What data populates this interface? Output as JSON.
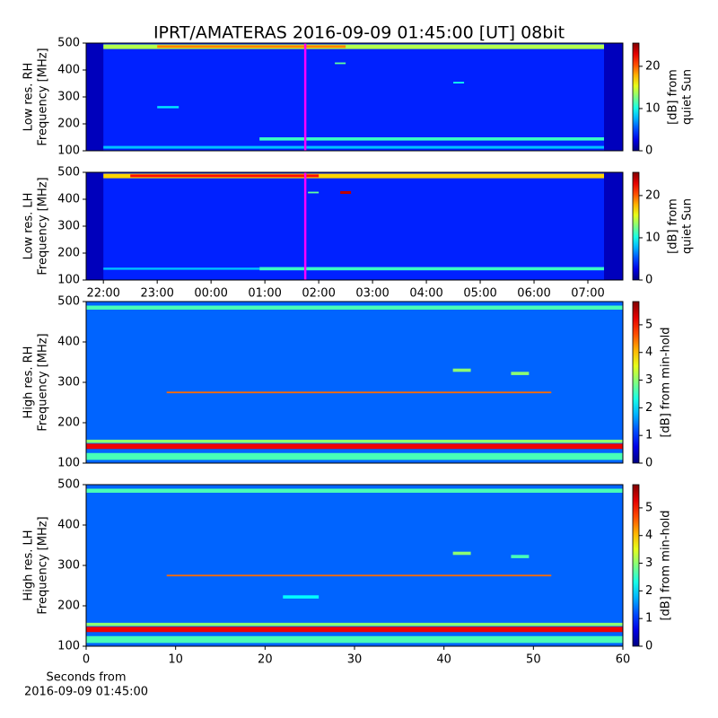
{
  "title": "IPRT/AMATERAS 2016-09-09 01:45:00 [UT]   08bit",
  "chart_data": [
    {
      "type": "heatmap",
      "ylabel": [
        "Low res. RH",
        "Frequency [MHz]"
      ],
      "xlim": [
        -2.32,
        7.65
      ],
      "ylim": [
        100,
        500
      ],
      "yticks": [
        100,
        200,
        300,
        400,
        500
      ],
      "colorbar": {
        "label": [
          "[dB] from",
          "quiet Sun"
        ],
        "lim": [
          0,
          25.5
        ],
        "ticks": [
          0,
          10,
          20
        ]
      },
      "marker": {
        "x": 1.75,
        "color": "#ff00ff"
      },
      "features": [
        {
          "x": [
            -2.32,
            7.65
          ],
          "y": [
            100,
            500
          ],
          "value": 4
        },
        {
          "x": [
            -2.32,
            -2.0
          ],
          "y": [
            100,
            500
          ],
          "value": 1.5
        },
        {
          "x": [
            7.3,
            7.65
          ],
          "y": [
            100,
            500
          ],
          "value": 1.5
        },
        {
          "x": [
            -2.0,
            7.3
          ],
          "y": [
            478,
            495
          ],
          "value": 14
        },
        {
          "x": [
            -1.0,
            2.5
          ],
          "y": [
            482,
            492
          ],
          "value": 19
        },
        {
          "x": [
            0.9,
            7.3
          ],
          "y": [
            138,
            150
          ],
          "value": 11
        },
        {
          "x": [
            -2.0,
            7.3
          ],
          "y": [
            108,
            118
          ],
          "value": 8
        },
        {
          "x": [
            -1.0,
            -0.6
          ],
          "y": [
            258,
            266
          ],
          "value": 9
        },
        {
          "x": [
            4.5,
            4.7
          ],
          "y": [
            350,
            356
          ],
          "value": 10
        },
        {
          "x": [
            2.3,
            2.5
          ],
          "y": [
            422,
            428
          ],
          "value": 12
        }
      ]
    },
    {
      "type": "heatmap",
      "ylabel": [
        "Low res. LH",
        "Frequency [MHz]"
      ],
      "xlim": [
        -2.32,
        7.65
      ],
      "ylim": [
        100,
        500
      ],
      "yticks": [
        100,
        200,
        300,
        400,
        500
      ],
      "xticks": [
        {
          "value": -2,
          "label": "22:00"
        },
        {
          "value": -1,
          "label": "23:00"
        },
        {
          "value": 0,
          "label": "00:00"
        },
        {
          "value": 1,
          "label": "01:00"
        },
        {
          "value": 2,
          "label": "02:00"
        },
        {
          "value": 3,
          "label": "03:00"
        },
        {
          "value": 4,
          "label": "04:00"
        },
        {
          "value": 5,
          "label": "05:00"
        },
        {
          "value": 6,
          "label": "06:00"
        },
        {
          "value": 7,
          "label": "07:00"
        }
      ],
      "colorbar": {
        "label": [
          "[dB] from",
          "quiet Sun"
        ],
        "lim": [
          0,
          25.5
        ],
        "ticks": [
          0,
          10,
          20
        ]
      },
      "marker": {
        "x": 1.75,
        "color": "#ff00ff"
      },
      "features": [
        {
          "x": [
            -2.32,
            7.65
          ],
          "y": [
            100,
            500
          ],
          "value": 4
        },
        {
          "x": [
            -2.32,
            -2.0
          ],
          "y": [
            100,
            500
          ],
          "value": 1.5
        },
        {
          "x": [
            7.3,
            7.65
          ],
          "y": [
            100,
            500
          ],
          "value": 1.5
        },
        {
          "x": [
            -2.0,
            7.3
          ],
          "y": [
            478,
            495
          ],
          "value": 17
        },
        {
          "x": [
            -1.5,
            2.0
          ],
          "y": [
            482,
            492
          ],
          "value": 22
        },
        {
          "x": [
            0.9,
            7.3
          ],
          "y": [
            136,
            148
          ],
          "value": 11
        },
        {
          "x": [
            -2.0,
            0.9
          ],
          "y": [
            138,
            146
          ],
          "value": 8
        },
        {
          "x": [
            1.8,
            2.0
          ],
          "y": [
            422,
            428
          ],
          "value": 12
        },
        {
          "x": [
            2.4,
            2.6
          ],
          "y": [
            420,
            430
          ],
          "value": 24
        }
      ]
    },
    {
      "type": "heatmap",
      "ylabel": [
        "High res. RH",
        "Frequency [MHz]"
      ],
      "xlim": [
        0,
        60
      ],
      "ylim": [
        100,
        500
      ],
      "yticks": [
        100,
        200,
        300,
        400,
        500
      ],
      "colorbar": {
        "label": [
          "[dB] from min-hold"
        ],
        "lim": [
          0,
          5.84
        ],
        "ticks": [
          0,
          1,
          2,
          3,
          4,
          5
        ]
      },
      "features": [
        {
          "x": [
            0,
            60
          ],
          "y": [
            100,
            500
          ],
          "value": 1.3
        },
        {
          "x": [
            0,
            60
          ],
          "y": [
            480,
            490
          ],
          "value": 2.6
        },
        {
          "x": [
            0,
            60
          ],
          "y": [
            150,
            158
          ],
          "value": 3
        },
        {
          "x": [
            0,
            60
          ],
          "y": [
            135,
            148
          ],
          "value": 5.2
        },
        {
          "x": [
            0,
            60
          ],
          "y": [
            108,
            125
          ],
          "value": 2.6
        },
        {
          "x": [
            9,
            52
          ],
          "y": [
            273,
            277
          ],
          "value": 4.5
        },
        {
          "x": [
            41,
            43
          ],
          "y": [
            326,
            334
          ],
          "value": 3
        },
        {
          "x": [
            47.5,
            49.5
          ],
          "y": [
            318,
            326
          ],
          "value": 3
        }
      ]
    },
    {
      "type": "heatmap",
      "ylabel": [
        "High res. LH",
        "Frequency [MHz]"
      ],
      "xlim": [
        0,
        60
      ],
      "ylim": [
        100,
        500
      ],
      "yticks": [
        100,
        200,
        300,
        400,
        500
      ],
      "xticks": [
        0,
        10,
        20,
        30,
        40,
        50,
        60
      ],
      "xlabel": [
        "Seconds from",
        "2016-09-09 01:45:00"
      ],
      "colorbar": {
        "label": [
          "[dB] from min-hold"
        ],
        "lim": [
          0,
          5.84
        ],
        "ticks": [
          0,
          1,
          2,
          3,
          4,
          5
        ]
      },
      "features": [
        {
          "x": [
            0,
            60
          ],
          "y": [
            100,
            500
          ],
          "value": 1.3
        },
        {
          "x": [
            0,
            60
          ],
          "y": [
            480,
            490
          ],
          "value": 2.6
        },
        {
          "x": [
            0,
            60
          ],
          "y": [
            150,
            158
          ],
          "value": 3
        },
        {
          "x": [
            0,
            60
          ],
          "y": [
            135,
            148
          ],
          "value": 5.2
        },
        {
          "x": [
            0,
            60
          ],
          "y": [
            108,
            125
          ],
          "value": 2.6
        },
        {
          "x": [
            9,
            52
          ],
          "y": [
            273,
            277
          ],
          "value": 4.5
        },
        {
          "x": [
            41,
            43
          ],
          "y": [
            326,
            334
          ],
          "value": 3
        },
        {
          "x": [
            47.5,
            49.5
          ],
          "y": [
            318,
            326
          ],
          "value": 2.6
        },
        {
          "x": [
            22,
            26
          ],
          "y": [
            218,
            226
          ],
          "value": 2.2
        }
      ]
    }
  ]
}
